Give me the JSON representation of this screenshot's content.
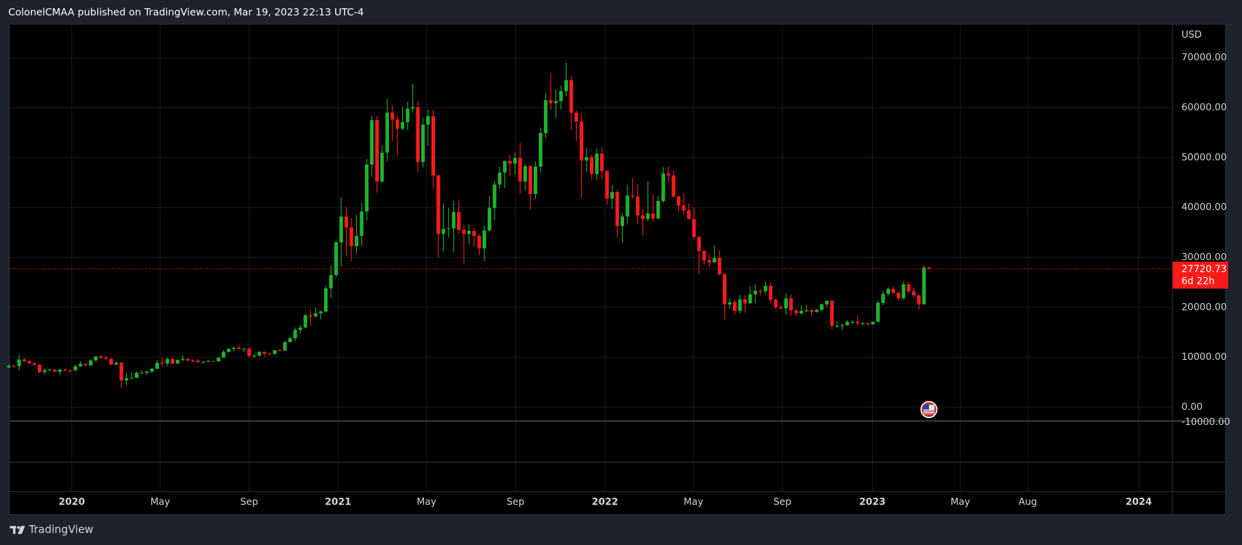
{
  "chart_data": {
    "type": "candlestick",
    "title": "ColonelCMAA published on TradingView.com, Mar 19, 2023 22:13 UTC-4",
    "currency": "USD",
    "up_color": "#1fb42a",
    "down_color": "#ff1a1a",
    "grid": true,
    "open": [
      7990,
      8300,
      8220,
      9550,
      9200,
      8800,
      8500,
      7050,
      7420,
      7500,
      7100,
      7520,
      7390,
      7350,
      8180,
      8650,
      8380,
      9380,
      10150,
      9900,
      9680,
      8530,
      8900,
      5360,
      5830,
      5880,
      6860,
      6900,
      7120,
      7700,
      8890,
      8730,
      9670,
      8720,
      9450,
      9660,
      9330,
      9300,
      9010,
      9070,
      9240,
      9160,
      9930,
      11050,
      11680,
      11900,
      11650,
      11700,
      10270,
      10330,
      11080,
      10730,
      10660,
      11380,
      11370,
      13030,
      13800,
      15480,
      15950,
      18410,
      18180,
      18800,
      19150,
      23800,
      26460,
      33000,
      38200,
      36000,
      32250,
      34300,
      39200,
      48600,
      57500,
      45200,
      51000,
      59000,
      57600,
      55800,
      57100,
      59800,
      60100,
      49100,
      56600,
      58300,
      46400,
      34700,
      35700,
      35800,
      39100,
      35500,
      34700,
      35300,
      34300,
      31800,
      35400,
      39900,
      44600,
      47000,
      49300,
      48800,
      49900,
      45200,
      48300,
      42700,
      48200,
      54900,
      61500,
      60900,
      61300,
      63300,
      65500,
      59000,
      57200,
      49400,
      50100,
      46700,
      50800,
      47300,
      41800,
      43100,
      36300,
      38200,
      42400,
      42200,
      38400,
      37700,
      38800,
      37800,
      41300,
      46800,
      46400,
      42200,
      40400,
      39400,
      37700,
      34100,
      31300,
      29400,
      29000,
      29900,
      26600,
      20600,
      21000,
      19300,
      21600,
      20800,
      22600,
      23300,
      23200,
      24300,
      21500,
      20000,
      19800,
      21800,
      19400,
      18800,
      19300,
      19400,
      19100,
      19500,
      20600,
      21300,
      16300,
      16300,
      16400,
      17100,
      17100,
      16800,
      16800,
      16600,
      17100,
      20900,
      22700,
      23700,
      22900,
      21800,
      24600,
      23200,
      22400,
      20600,
      27950
    ],
    "high": [
      8650,
      8420,
      10500,
      9940,
      9500,
      8900,
      8600,
      7800,
      7750,
      7650,
      7700,
      7700,
      7500,
      8450,
      9190,
      8800,
      9600,
      10170,
      10500,
      10300,
      9990,
      9200,
      9100,
      6900,
      7000,
      7200,
      7470,
      7300,
      7800,
      9450,
      9990,
      9950,
      9880,
      9600,
      10400,
      9850,
      9600,
      9770,
      9250,
      9450,
      9330,
      9990,
      11420,
      11800,
      12100,
      12470,
      11800,
      12080,
      10600,
      11180,
      11100,
      10950,
      11500,
      11720,
      13350,
      14100,
      15960,
      16500,
      18800,
      19480,
      19900,
      19400,
      24300,
      28400,
      33300,
      41950,
      40100,
      37900,
      38500,
      40900,
      49700,
      58300,
      58300,
      52400,
      61800,
      60400,
      58400,
      60200,
      61200,
      64800,
      61300,
      58000,
      59600,
      59500,
      46700,
      40800,
      39900,
      41300,
      41300,
      36500,
      36600,
      35900,
      34600,
      36400,
      42300,
      45300,
      48100,
      49400,
      50500,
      51000,
      52900,
      48800,
      48400,
      49200,
      56000,
      62900,
      67000,
      63700,
      64400,
      69000,
      66300,
      59400,
      59000,
      51900,
      50600,
      51800,
      52100,
      47500,
      44500,
      43500,
      38900,
      44500,
      45900,
      44700,
      39700,
      45300,
      42500,
      42300,
      48100,
      48200,
      47400,
      42400,
      42900,
      40800,
      40000,
      34200,
      31400,
      30600,
      32300,
      31500,
      26900,
      21800,
      21500,
      22500,
      22400,
      24200,
      24600,
      23700,
      25200,
      25000,
      21800,
      20600,
      22800,
      22600,
      19700,
      20400,
      20500,
      19600,
      19700,
      20800,
      21400,
      21500,
      17200,
      16800,
      17400,
      17400,
      18400,
      17000,
      16900,
      17200,
      21300,
      23300,
      24000,
      24200,
      23200,
      25200,
      25100,
      24000,
      22600,
      28400,
      28200
    ],
    "low": [
      7800,
      7950,
      7300,
      9050,
      8650,
      8400,
      6800,
      6530,
      7250,
      7050,
      6450,
      7150,
      6880,
      7330,
      8100,
      8300,
      8250,
      9140,
      9720,
      9350,
      8450,
      8400,
      3850,
      4450,
      5700,
      5850,
      6800,
      6480,
      6800,
      7600,
      8100,
      8200,
      8600,
      8650,
      9250,
      9250,
      8950,
      8900,
      8850,
      9000,
      9100,
      9100,
      9900,
      10950,
      11150,
      11600,
      11100,
      9900,
      9880,
      10200,
      10150,
      10400,
      10520,
      11220,
      11250,
      12950,
      13200,
      14800,
      15800,
      16300,
      18000,
      17600,
      19000,
      21900,
      26000,
      28100,
      30400,
      29200,
      30800,
      32300,
      37400,
      46200,
      43000,
      44900,
      49300,
      53300,
      50400,
      55400,
      55500,
      59000,
      47100,
      48000,
      52400,
      43800,
      30000,
      31200,
      34000,
      31000,
      34800,
      28800,
      32700,
      32100,
      30400,
      29300,
      35200,
      37500,
      43800,
      43900,
      46400,
      46500,
      42800,
      43400,
      39600,
      41700,
      47000,
      53900,
      59500,
      58000,
      59700,
      62300,
      55600,
      53300,
      42000,
      47100,
      45600,
      45500,
      45700,
      40600,
      39700,
      34000,
      32900,
      36600,
      41700,
      36800,
      34400,
      37200,
      37200,
      37600,
      40900,
      45200,
      41900,
      39200,
      38500,
      37600,
      33700,
      26700,
      28700,
      28000,
      28900,
      26500,
      17600,
      19700,
      18600,
      18800,
      18900,
      20700,
      20800,
      22400,
      22700,
      20800,
      19600,
      19600,
      18500,
      18300,
      18200,
      18500,
      19000,
      18200,
      18900,
      19200,
      20000,
      15600,
      15900,
      15500,
      16300,
      16700,
      16300,
      16300,
      16400,
      16500,
      17000,
      20400,
      22300,
      22700,
      21400,
      21500,
      22800,
      21900,
      19600,
      20500,
      27600
    ],
    "close": [
      8300,
      8220,
      9550,
      9200,
      8800,
      8500,
      7050,
      7420,
      7500,
      7100,
      7520,
      7390,
      7350,
      8180,
      8650,
      8380,
      9380,
      10150,
      9900,
      9680,
      8530,
      8900,
      5360,
      5830,
      5880,
      6860,
      6900,
      7120,
      7700,
      8890,
      8730,
      9670,
      8720,
      9450,
      9660,
      9330,
      9300,
      9010,
      9070,
      9240,
      9160,
      9930,
      11050,
      11680,
      11900,
      11650,
      11700,
      10270,
      10330,
      11080,
      10730,
      10660,
      11380,
      11370,
      13030,
      13800,
      15480,
      15950,
      18410,
      18180,
      18800,
      19150,
      23800,
      26460,
      33000,
      38200,
      36000,
      32250,
      34300,
      39200,
      48600,
      57500,
      45200,
      51000,
      59000,
      57600,
      55800,
      57100,
      59800,
      60100,
      49100,
      56600,
      58300,
      46400,
      34700,
      35700,
      35800,
      39100,
      35500,
      34700,
      35300,
      34300,
      31800,
      35400,
      39900,
      44600,
      47000,
      49300,
      48800,
      49900,
      45200,
      48300,
      42700,
      48200,
      54900,
      61500,
      60900,
      61300,
      63300,
      65500,
      59000,
      57200,
      49400,
      50100,
      46700,
      50800,
      47300,
      41800,
      43100,
      36300,
      38200,
      42400,
      42200,
      38400,
      37700,
      38800,
      37800,
      41300,
      46800,
      46400,
      42200,
      40400,
      39400,
      37700,
      34100,
      31300,
      29400,
      29000,
      29900,
      26600,
      20600,
      21000,
      19300,
      21600,
      20800,
      22600,
      23300,
      23200,
      24300,
      21500,
      20000,
      19800,
      21800,
      19400,
      18800,
      19300,
      19400,
      19100,
      19500,
      20600,
      21300,
      16300,
      16300,
      16400,
      17100,
      17100,
      16800,
      16800,
      16600,
      17100,
      20900,
      22700,
      23700,
      22900,
      21800,
      24600,
      23200,
      22400,
      20600,
      27950,
      27720
    ],
    "xlim": [
      0.2,
      227.5
    ],
    "xticks": [
      {
        "value": 12.3,
        "label": "2020"
      },
      {
        "value": 29.6,
        "label": "May"
      },
      {
        "value": 47,
        "label": "Sep"
      },
      {
        "value": 64.4,
        "label": "2021"
      },
      {
        "value": 81.7,
        "label": "May"
      },
      {
        "value": 99.1,
        "label": "Sep"
      },
      {
        "value": 116.6,
        "label": "2022"
      },
      {
        "value": 133.9,
        "label": "May"
      },
      {
        "value": 151.3,
        "label": "Sep"
      },
      {
        "value": 168.9,
        "label": "2023"
      },
      {
        "value": 186.1,
        "label": "May"
      },
      {
        "value": 199.3,
        "label": "Aug"
      },
      {
        "value": 221,
        "label": "2024"
      }
    ],
    "ylim": [
      -2700,
      76800
    ],
    "yticks": [
      {
        "value": -10000,
        "label": "-10000.00"
      },
      {
        "value": 0,
        "label": "0.00"
      },
      {
        "value": 10000,
        "label": "10000.00"
      },
      {
        "value": 20000,
        "label": "20000.00"
      },
      {
        "value": 30000,
        "label": "30000.00"
      },
      {
        "value": 40000,
        "label": "40000.00"
      },
      {
        "value": 50000,
        "label": "50000.00"
      },
      {
        "value": 60000,
        "label": "60000.00"
      },
      {
        "value": 70000,
        "label": "70000.00"
      }
    ],
    "last_price": 27720.73,
    "countdown": "6d 22h",
    "last_price_color": "#ff1a1a"
  },
  "footer": {
    "brand": "TradingView"
  }
}
